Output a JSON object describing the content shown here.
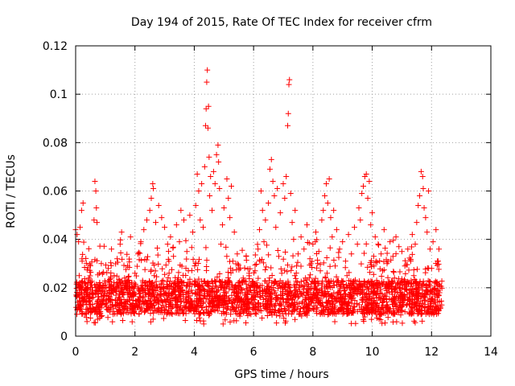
{
  "chart_data": {
    "type": "scatter",
    "title": "Day 194 of 2015, Rate Of TEC Index for receiver cfrm",
    "xlabel": "GPS time / hours",
    "ylabel": "ROTI / TECUs",
    "xlim": [
      0,
      14
    ],
    "ylim": [
      0,
      0.12
    ],
    "xticks": [
      0,
      2,
      4,
      6,
      8,
      10,
      12,
      14
    ],
    "xtick_labels": [
      "0",
      "2",
      "4",
      "6",
      "8",
      "10",
      "12",
      "14"
    ],
    "yticks": [
      0,
      0.02,
      0.04,
      0.06,
      0.08,
      0.1,
      0.12
    ],
    "ytick_labels": [
      "0",
      "0.02",
      "0.04",
      "0.06",
      "0.08",
      "0.1",
      "0.12"
    ],
    "grid": true,
    "marker": "+",
    "color": "#ff0000",
    "series": [
      {
        "name": "ROTI",
        "points": [
          [
            0.0,
            0.044
          ],
          [
            0.02,
            0.017
          ],
          [
            0.05,
            0.042
          ],
          [
            0.08,
            0.012
          ],
          [
            0.1,
            0.039
          ],
          [
            0.12,
            0.025
          ],
          [
            0.15,
            0.045
          ],
          [
            0.18,
            0.02
          ],
          [
            0.2,
            0.052
          ],
          [
            0.22,
            0.031
          ],
          [
            0.25,
            0.055
          ],
          [
            0.28,
            0.016
          ],
          [
            0.3,
            0.022
          ],
          [
            0.35,
            0.014
          ],
          [
            0.4,
            0.019
          ],
          [
            0.45,
            0.024
          ],
          [
            0.5,
            0.013
          ],
          [
            0.55,
            0.018
          ],
          [
            0.6,
            0.016
          ],
          [
            0.62,
            0.048
          ],
          [
            0.65,
            0.064
          ],
          [
            0.68,
            0.06
          ],
          [
            0.7,
            0.053
          ],
          [
            0.72,
            0.047
          ],
          [
            0.75,
            0.021
          ],
          [
            0.8,
            0.026
          ],
          [
            0.85,
            0.014
          ],
          [
            0.9,
            0.019
          ],
          [
            0.95,
            0.017
          ],
          [
            1.0,
            0.022
          ],
          [
            1.05,
            0.011
          ],
          [
            1.1,
            0.028
          ],
          [
            1.15,
            0.015
          ],
          [
            1.2,
            0.021
          ],
          [
            1.25,
            0.013
          ],
          [
            1.3,
            0.025
          ],
          [
            1.35,
            0.019
          ],
          [
            1.4,
            0.032
          ],
          [
            1.45,
            0.016
          ],
          [
            1.5,
            0.038
          ],
          [
            1.55,
            0.043
          ],
          [
            1.6,
            0.018
          ],
          [
            1.65,
            0.024
          ],
          [
            1.7,
            0.012
          ],
          [
            1.75,
            0.029
          ],
          [
            1.8,
            0.015
          ],
          [
            1.85,
            0.041
          ],
          [
            1.9,
            0.022
          ],
          [
            1.95,
            0.017
          ],
          [
            2.0,
            0.026
          ],
          [
            2.05,
            0.013
          ],
          [
            2.1,
            0.034
          ],
          [
            2.15,
            0.019
          ],
          [
            2.2,
            0.039
          ],
          [
            2.25,
            0.016
          ],
          [
            2.3,
            0.044
          ],
          [
            2.35,
            0.021
          ],
          [
            2.4,
            0.048
          ],
          [
            2.45,
            0.018
          ],
          [
            2.5,
            0.052
          ],
          [
            2.55,
            0.057
          ],
          [
            2.6,
            0.063
          ],
          [
            2.62,
            0.061
          ],
          [
            2.65,
            0.025
          ],
          [
            2.7,
            0.047
          ],
          [
            2.75,
            0.02
          ],
          [
            2.8,
            0.054
          ],
          [
            2.85,
            0.017
          ],
          [
            2.9,
            0.049
          ],
          [
            2.95,
            0.023
          ],
          [
            3.0,
            0.045
          ],
          [
            3.05,
            0.014
          ],
          [
            3.1,
            0.038
          ],
          [
            3.15,
            0.026
          ],
          [
            3.2,
            0.041
          ],
          [
            3.25,
            0.018
          ],
          [
            3.3,
            0.033
          ],
          [
            3.35,
            0.022
          ],
          [
            3.4,
            0.046
          ],
          [
            3.45,
            0.015
          ],
          [
            3.5,
            0.039
          ],
          [
            3.55,
            0.052
          ],
          [
            3.6,
            0.021
          ],
          [
            3.65,
            0.048
          ],
          [
            3.7,
            0.012
          ],
          [
            3.75,
            0.035
          ],
          [
            3.8,
            0.027
          ],
          [
            3.85,
            0.05
          ],
          [
            3.9,
            0.019
          ],
          [
            3.95,
            0.043
          ],
          [
            4.0,
            0.011
          ],
          [
            4.05,
            0.054
          ],
          [
            4.1,
            0.067
          ],
          [
            4.15,
            0.06
          ],
          [
            4.2,
            0.048
          ],
          [
            4.25,
            0.063
          ],
          [
            4.3,
            0.045
          ],
          [
            4.35,
            0.07
          ],
          [
            4.38,
            0.087
          ],
          [
            4.4,
            0.094
          ],
          [
            4.42,
            0.105
          ],
          [
            4.44,
            0.11
          ],
          [
            4.46,
            0.086
          ],
          [
            4.48,
            0.095
          ],
          [
            4.5,
            0.074
          ],
          [
            4.52,
            0.058
          ],
          [
            4.55,
            0.066
          ],
          [
            4.6,
            0.052
          ],
          [
            4.65,
            0.068
          ],
          [
            4.7,
            0.063
          ],
          [
            4.75,
            0.075
          ],
          [
            4.8,
            0.079
          ],
          [
            4.82,
            0.072
          ],
          [
            4.85,
            0.061
          ],
          [
            4.9,
            0.038
          ],
          [
            4.95,
            0.046
          ],
          [
            5.0,
            0.053
          ],
          [
            5.05,
            0.022
          ],
          [
            5.1,
            0.065
          ],
          [
            5.15,
            0.057
          ],
          [
            5.2,
            0.049
          ],
          [
            5.25,
            0.062
          ],
          [
            5.3,
            0.031
          ],
          [
            5.35,
            0.043
          ],
          [
            5.4,
            0.02
          ],
          [
            5.45,
            0.034
          ],
          [
            5.5,
            0.016
          ],
          [
            5.55,
            0.028
          ],
          [
            5.6,
            0.012
          ],
          [
            5.65,
            0.024
          ],
          [
            5.7,
            0.017
          ],
          [
            5.75,
            0.033
          ],
          [
            5.8,
            0.014
          ],
          [
            5.85,
            0.026
          ],
          [
            5.9,
            0.019
          ],
          [
            5.95,
            0.022
          ],
          [
            6.0,
            0.015
          ],
          [
            6.05,
            0.027
          ],
          [
            6.1,
            0.018
          ],
          [
            6.15,
            0.036
          ],
          [
            6.2,
            0.044
          ],
          [
            6.25,
            0.06
          ],
          [
            6.3,
            0.052
          ],
          [
            6.35,
            0.039
          ],
          [
            6.4,
            0.048
          ],
          [
            6.45,
            0.022
          ],
          [
            6.5,
            0.055
          ],
          [
            6.55,
            0.069
          ],
          [
            6.6,
            0.073
          ],
          [
            6.65,
            0.064
          ],
          [
            6.7,
            0.058
          ],
          [
            6.75,
            0.045
          ],
          [
            6.8,
            0.061
          ],
          [
            6.85,
            0.033
          ],
          [
            6.9,
            0.051
          ],
          [
            6.95,
            0.026
          ],
          [
            7.0,
            0.063
          ],
          [
            7.05,
            0.057
          ],
          [
            7.1,
            0.066
          ],
          [
            7.15,
            0.087
          ],
          [
            7.17,
            0.092
          ],
          [
            7.19,
            0.104
          ],
          [
            7.21,
            0.106
          ],
          [
            7.25,
            0.059
          ],
          [
            7.3,
            0.047
          ],
          [
            7.35,
            0.04
          ],
          [
            7.4,
            0.052
          ],
          [
            7.45,
            0.029
          ],
          [
            7.5,
            0.034
          ],
          [
            7.55,
            0.021
          ],
          [
            7.6,
            0.041
          ],
          [
            7.65,
            0.017
          ],
          [
            7.7,
            0.036
          ],
          [
            7.75,
            0.024
          ],
          [
            7.8,
            0.046
          ],
          [
            7.85,
            0.019
          ],
          [
            7.9,
            0.032
          ],
          [
            7.95,
            0.014
          ],
          [
            8.0,
            0.038
          ],
          [
            8.05,
            0.022
          ],
          [
            8.1,
            0.043
          ],
          [
            8.15,
            0.016
          ],
          [
            8.2,
            0.035
          ],
          [
            8.25,
            0.027
          ],
          [
            8.3,
            0.048
          ],
          [
            8.35,
            0.052
          ],
          [
            8.4,
            0.058
          ],
          [
            8.45,
            0.063
          ],
          [
            8.5,
            0.055
          ],
          [
            8.55,
            0.065
          ],
          [
            8.6,
            0.049
          ],
          [
            8.65,
            0.041
          ],
          [
            8.7,
            0.052
          ],
          [
            8.75,
            0.029
          ],
          [
            8.8,
            0.044
          ],
          [
            8.85,
            0.018
          ],
          [
            8.9,
            0.036
          ],
          [
            8.95,
            0.021
          ],
          [
            9.0,
            0.039
          ],
          [
            9.05,
            0.015
          ],
          [
            9.1,
            0.031
          ],
          [
            9.15,
            0.025
          ],
          [
            9.2,
            0.042
          ],
          [
            9.25,
            0.017
          ],
          [
            9.3,
            0.034
          ],
          [
            9.35,
            0.022
          ],
          [
            9.4,
            0.045
          ],
          [
            9.45,
            0.019
          ],
          [
            9.5,
            0.038
          ],
          [
            9.55,
            0.053
          ],
          [
            9.6,
            0.048
          ],
          [
            9.65,
            0.059
          ],
          [
            9.7,
            0.062
          ],
          [
            9.75,
            0.066
          ],
          [
            9.8,
            0.067
          ],
          [
            9.85,
            0.057
          ],
          [
            9.9,
            0.064
          ],
          [
            9.95,
            0.046
          ],
          [
            10.0,
            0.051
          ],
          [
            10.05,
            0.033
          ],
          [
            10.1,
            0.041
          ],
          [
            10.15,
            0.023
          ],
          [
            10.2,
            0.038
          ],
          [
            10.25,
            0.016
          ],
          [
            10.3,
            0.034
          ],
          [
            10.35,
            0.027
          ],
          [
            10.4,
            0.044
          ],
          [
            10.45,
            0.012
          ],
          [
            10.5,
            0.03
          ],
          [
            10.55,
            0.02
          ],
          [
            10.6,
            0.039
          ],
          [
            10.65,
            0.015
          ],
          [
            10.7,
            0.033
          ],
          [
            10.75,
            0.024
          ],
          [
            10.8,
            0.041
          ],
          [
            10.85,
            0.018
          ],
          [
            10.9,
            0.037
          ],
          [
            10.95,
            0.022
          ],
          [
            11.0,
            0.035
          ],
          [
            11.05,
            0.013
          ],
          [
            11.1,
            0.029
          ],
          [
            11.15,
            0.021
          ],
          [
            11.2,
            0.036
          ],
          [
            11.25,
            0.016
          ],
          [
            11.3,
            0.031
          ],
          [
            11.35,
            0.042
          ],
          [
            11.4,
            0.025
          ],
          [
            11.45,
            0.038
          ],
          [
            11.5,
            0.047
          ],
          [
            11.55,
            0.054
          ],
          [
            11.6,
            0.058
          ],
          [
            11.65,
            0.068
          ],
          [
            11.7,
            0.066
          ],
          [
            11.72,
            0.061
          ],
          [
            11.75,
            0.053
          ],
          [
            11.8,
            0.049
          ],
          [
            11.85,
            0.043
          ],
          [
            11.9,
            0.06
          ],
          [
            11.95,
            0.036
          ],
          [
            12.0,
            0.028
          ],
          [
            12.05,
            0.039
          ],
          [
            12.1,
            0.022
          ],
          [
            12.15,
            0.044
          ],
          [
            12.2,
            0.031
          ],
          [
            12.25,
            0.036
          ],
          [
            12.3,
            0.012
          ]
        ]
      }
    ],
    "band": {
      "description": "dense baseline noise points",
      "x_range": [
        0,
        12.35
      ],
      "typical_min": 0.005,
      "typical_max": 0.032,
      "center": 0.016
    }
  }
}
